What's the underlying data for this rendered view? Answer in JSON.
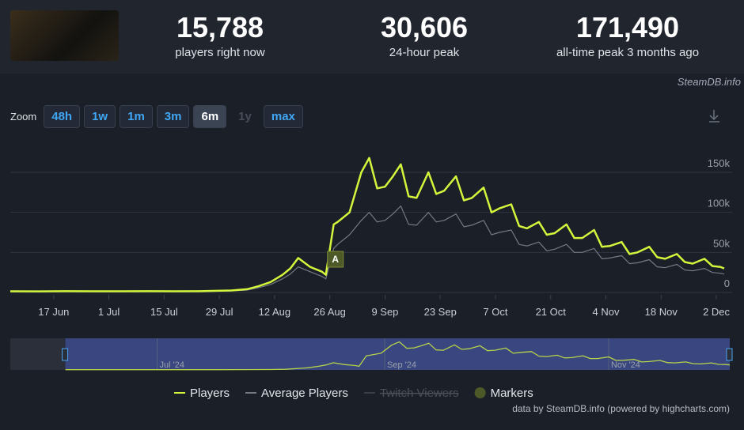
{
  "header": {
    "stats": [
      {
        "value": "15,788",
        "label": "players right now"
      },
      {
        "value": "30,606",
        "label": "24-hour peak"
      },
      {
        "value": "171,490",
        "label": "all-time peak 3 months ago"
      }
    ],
    "brand": "SteamDB.info"
  },
  "zoom": {
    "label": "Zoom",
    "buttons": [
      "48h",
      "1w",
      "1m",
      "3m",
      "6m",
      "1y",
      "max"
    ],
    "active": "6m",
    "disabled": "1y"
  },
  "chart_data": {
    "type": "line",
    "x": [
      "2024-06-06",
      "2024-06-13",
      "2024-06-20",
      "2024-06-27",
      "2024-07-04",
      "2024-07-11",
      "2024-07-18",
      "2024-07-25",
      "2024-08-01",
      "2024-08-05",
      "2024-08-08",
      "2024-08-11",
      "2024-08-14",
      "2024-08-16",
      "2024-08-18",
      "2024-08-21",
      "2024-08-24",
      "2024-08-25",
      "2024-08-27",
      "2024-08-28",
      "2024-08-31",
      "2024-09-03",
      "2024-09-05",
      "2024-09-07",
      "2024-09-09",
      "2024-09-11",
      "2024-09-13",
      "2024-09-15",
      "2024-09-17",
      "2024-09-20",
      "2024-09-22",
      "2024-09-24",
      "2024-09-27",
      "2024-09-29",
      "2024-10-01",
      "2024-10-04",
      "2024-10-06",
      "2024-10-08",
      "2024-10-11",
      "2024-10-13",
      "2024-10-15",
      "2024-10-18",
      "2024-10-20",
      "2024-10-22",
      "2024-10-25",
      "2024-10-27",
      "2024-10-29",
      "2024-11-01",
      "2024-11-03",
      "2024-11-05",
      "2024-11-08",
      "2024-11-10",
      "2024-11-12",
      "2024-11-15",
      "2024-11-17",
      "2024-11-19",
      "2024-11-22",
      "2024-11-24",
      "2024-11-26",
      "2024-11-29",
      "2024-12-01",
      "2024-12-03",
      "2024-12-04"
    ],
    "series": [
      {
        "name": "Players",
        "color": "#d4f53c",
        "values": [
          1500,
          1400,
          1600,
          1500,
          1500,
          1600,
          1500,
          1700,
          2500,
          4000,
          8000,
          13000,
          22000,
          30000,
          43000,
          32000,
          26000,
          22000,
          85000,
          88000,
          100000,
          150000,
          168000,
          130000,
          132000,
          145000,
          160000,
          120000,
          118000,
          150000,
          123000,
          127000,
          145000,
          115000,
          118000,
          131000,
          100000,
          105000,
          110000,
          83000,
          80000,
          88000,
          72000,
          74000,
          85000,
          68000,
          68000,
          78000,
          57000,
          58000,
          63000,
          48000,
          50000,
          57000,
          44000,
          42000,
          48000,
          38000,
          36000,
          42000,
          33000,
          32000,
          30000
        ]
      },
      {
        "name": "Average Players",
        "color": "#737a84",
        "values": [
          1200,
          1100,
          1300,
          1200,
          1200,
          1300,
          1200,
          1400,
          2000,
          3000,
          6000,
          10000,
          17000,
          23000,
          32000,
          26000,
          20000,
          17000,
          55000,
          60000,
          72000,
          90000,
          100000,
          88000,
          90000,
          98000,
          108000,
          85000,
          84000,
          100000,
          88000,
          90000,
          98000,
          82000,
          84000,
          90000,
          72000,
          75000,
          78000,
          60000,
          58000,
          63000,
          52000,
          54000,
          60000,
          50000,
          50000,
          55000,
          42000,
          43000,
          46000,
          36000,
          37000,
          41000,
          32000,
          31000,
          35000,
          28000,
          27000,
          30000,
          25000,
          24000,
          23000
        ]
      }
    ],
    "legend_extra": [
      {
        "name": "Twitch Viewers",
        "hidden": true
      },
      {
        "name": "Markers",
        "color": "#4d5a28"
      }
    ],
    "annotations": [
      {
        "x": "2024-08-25",
        "label": "A"
      }
    ],
    "xlim": [
      "2024-06-06",
      "2024-12-05"
    ],
    "xticks": [
      {
        "value": "2024-06-17",
        "label": "17 Jun"
      },
      {
        "value": "2024-07-01",
        "label": "1 Jul"
      },
      {
        "value": "2024-07-15",
        "label": "15 Jul"
      },
      {
        "value": "2024-07-29",
        "label": "29 Jul"
      },
      {
        "value": "2024-08-12",
        "label": "12 Aug"
      },
      {
        "value": "2024-08-26",
        "label": "26 Aug"
      },
      {
        "value": "2024-09-09",
        "label": "9 Sep"
      },
      {
        "value": "2024-09-23",
        "label": "23 Sep"
      },
      {
        "value": "2024-10-07",
        "label": "7 Oct"
      },
      {
        "value": "2024-10-21",
        "label": "21 Oct"
      },
      {
        "value": "2024-11-04",
        "label": "4 Nov"
      },
      {
        "value": "2024-11-18",
        "label": "18 Nov"
      },
      {
        "value": "2024-12-02",
        "label": "2 Dec"
      }
    ],
    "ylim": [
      0,
      180000
    ],
    "yticks": [
      0,
      {
        "value": 50000,
        "label": "50k"
      },
      {
        "value": 100000,
        "label": "100k"
      },
      {
        "value": 150000,
        "label": "150k"
      }
    ],
    "grid": true,
    "navigator": {
      "xlim": [
        "2024-05-22",
        "2024-12-04"
      ],
      "labels": [
        {
          "value": "2024-07-01",
          "label": "Jul '24"
        },
        {
          "value": "2024-09-01",
          "label": "Sep '24"
        },
        {
          "value": "2024-11-01",
          "label": "Nov '24"
        }
      ]
    },
    "credits": "data by SteamDB.info (powered by highcharts.com)"
  }
}
